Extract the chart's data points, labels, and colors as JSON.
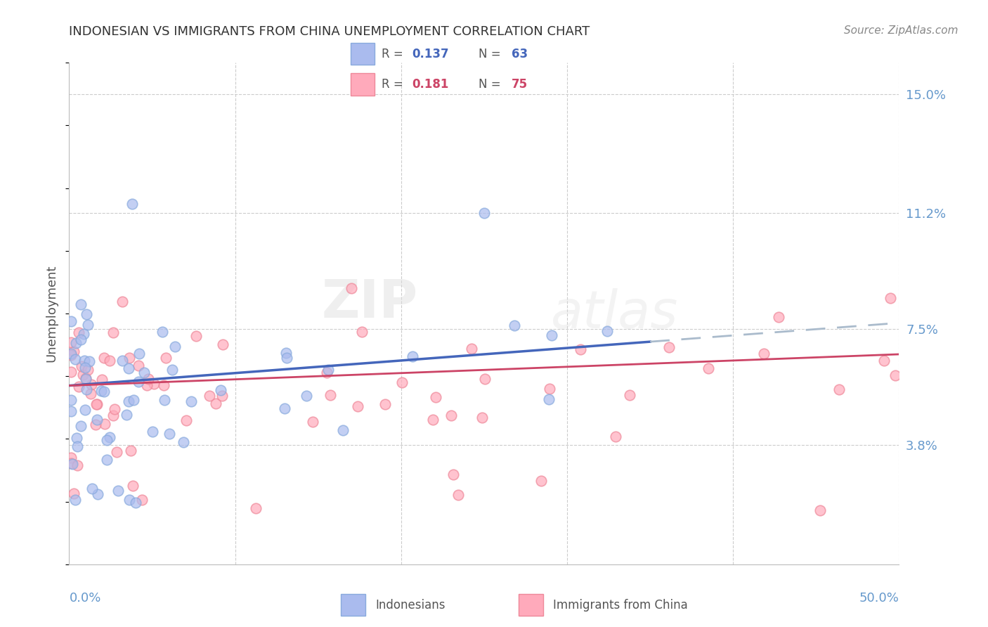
{
  "title": "INDONESIAN VS IMMIGRANTS FROM CHINA UNEMPLOYMENT CORRELATION CHART",
  "source": "Source: ZipAtlas.com",
  "ylabel": "Unemployment",
  "xlim": [
    0.0,
    0.5
  ],
  "ylim": [
    0.0,
    0.16
  ],
  "watermark_zip": "ZIP",
  "watermark_atlas": "atlas",
  "color_blue": "#88AADD",
  "color_pink": "#EE8899",
  "color_blue_fill": "#AABBEE",
  "color_pink_fill": "#FFAABB",
  "color_trendline_blue": "#4466BB",
  "color_trendline_pink": "#CC4466",
  "color_dashed_blue": "#AABBCC",
  "grid_color": "#CCCCCC",
  "background_color": "#FFFFFF",
  "tick_color": "#6699CC",
  "axis_color": "#BBBBBB",
  "ytick_vals": [
    0.038,
    0.075,
    0.112,
    0.15
  ],
  "ytick_labels": [
    "3.8%",
    "7.5%",
    "11.2%",
    "15.0%"
  ],
  "xtick_labels": [
    "0.0%",
    "50.0%"
  ],
  "legend_text_color": "#555555",
  "r1": "0.137",
  "n1": "63",
  "r2": "0.181",
  "n2": "75",
  "indo_label": "Indonesians",
  "china_label": "Immigrants from China"
}
